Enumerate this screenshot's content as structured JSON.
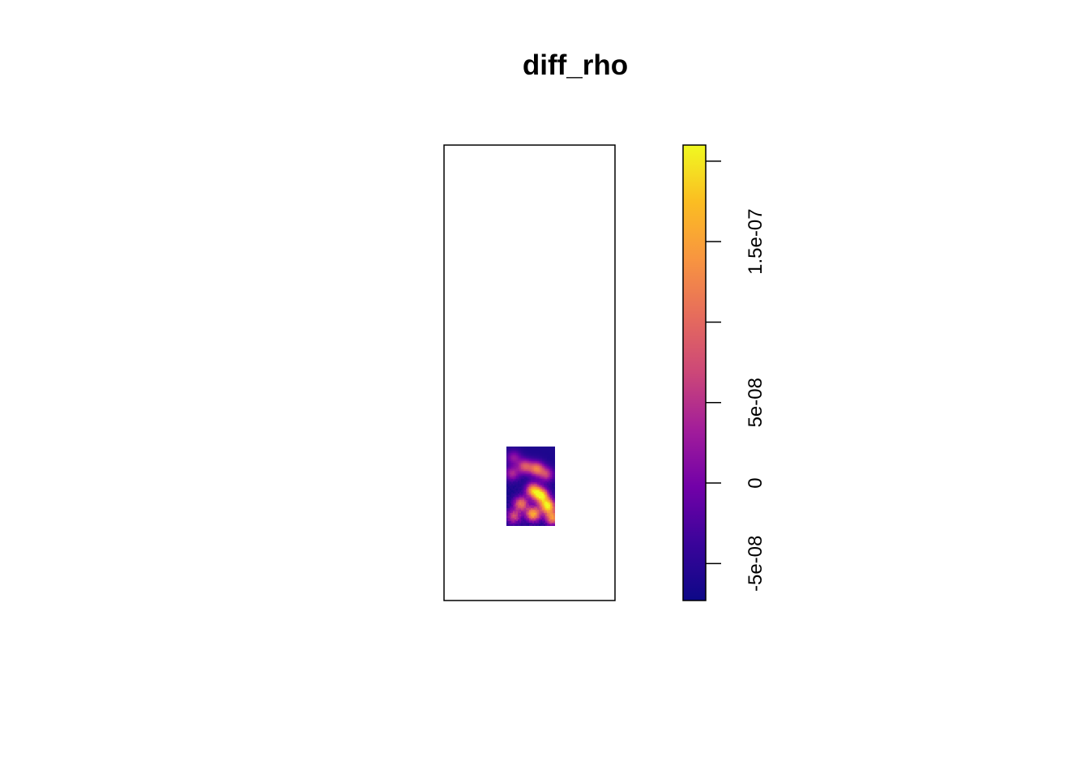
{
  "chart_data": {
    "type": "heatmap",
    "title": "diff_rho",
    "xlabel": "",
    "ylabel": "",
    "axes_shown": false,
    "grid": false,
    "colormap": "plasma-like (navy -> purple -> magenta -> pink -> orange -> yellow)",
    "colorbar": {
      "position": "right",
      "range": [
        -7.3e-08,
        2.1e-07
      ],
      "ticks": [
        -5e-08,
        0,
        5e-08,
        1.5e-07
      ],
      "tick_labels": [
        "-5e-08",
        "0",
        "5e-08",
        "1.5e-07"
      ],
      "tick_marks": [
        -5e-08,
        0,
        5e-08,
        1e-07,
        1.5e-07,
        2e-07
      ],
      "colors": [
        "#0d0887",
        "#3a049a",
        "#7201a8",
        "#a21d9a",
        "#cc4778",
        "#e66c5c",
        "#f89540",
        "#fbbd22",
        "#f0f921"
      ]
    },
    "raster": {
      "description": "small density-difference raster inside the lower-middle part of the frame; mostly low (navy) values with clusters of high (pink/orange/yellow) values, concentrated in the lower right",
      "background_value": -6e-08,
      "hotspots": [
        {
          "x": 0.15,
          "y": 0.14,
          "value": 2e-08
        },
        {
          "x": 0.38,
          "y": 0.25,
          "value": 8e-08
        },
        {
          "x": 0.62,
          "y": 0.28,
          "value": 1.1e-07
        },
        {
          "x": 0.82,
          "y": 0.35,
          "value": 6e-08
        },
        {
          "x": 0.12,
          "y": 0.34,
          "value": 4e-08
        },
        {
          "x": 0.55,
          "y": 0.55,
          "value": 1.5e-07
        },
        {
          "x": 0.72,
          "y": 0.62,
          "value": 1.9e-07
        },
        {
          "x": 0.3,
          "y": 0.72,
          "value": 1.1e-07
        },
        {
          "x": 0.85,
          "y": 0.75,
          "value": 2e-07
        },
        {
          "x": 0.55,
          "y": 0.85,
          "value": 1.6e-07
        },
        {
          "x": 0.15,
          "y": 0.88,
          "value": 7e-08
        },
        {
          "x": 0.95,
          "y": 0.9,
          "value": 1.3e-07
        }
      ]
    }
  }
}
